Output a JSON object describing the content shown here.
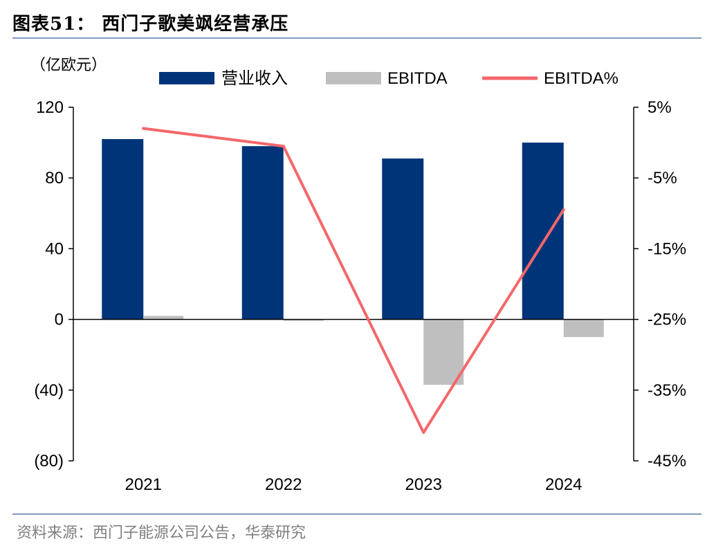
{
  "header": {
    "title": "图表51：  西门子歌美飒经营承压",
    "unit": "（亿欧元）",
    "source": "资料来源：西门子能源公司公告，华泰研究"
  },
  "colors": {
    "revenue": "#003478",
    "ebitda": "#bfbfbf",
    "ebitda_pct": "#f4676b",
    "rule": "#7f9bbf"
  },
  "chart_data": {
    "type": "bar",
    "categories": [
      "2021",
      "2022",
      "2023",
      "2024"
    ],
    "series": [
      {
        "name": "营业收入",
        "type": "bar",
        "axis": "left",
        "values": [
          102.0,
          98.0,
          91.0,
          100.0
        ]
      },
      {
        "name": "EBITDA",
        "type": "bar",
        "axis": "left",
        "values": [
          2.0,
          -0.5,
          -37.0,
          -10.0
        ]
      },
      {
        "name": "EBITDA%",
        "type": "line",
        "axis": "right",
        "values": [
          2.0,
          -0.5,
          -41.0,
          -9.5
        ]
      }
    ],
    "y_left": {
      "min": -80,
      "max": 120,
      "ticks": [
        120,
        80,
        40,
        0,
        -40,
        -80
      ],
      "tick_labels": [
        "120",
        "80",
        "40",
        "0",
        "(40)",
        "(80)"
      ]
    },
    "y_right": {
      "min": -45,
      "max": 5,
      "ticks": [
        5,
        -5,
        -15,
        -25,
        -35,
        -45
      ],
      "tick_labels": [
        "5%",
        "-5%",
        "-15%",
        "-25%",
        "-35%",
        "-45%"
      ]
    },
    "legend_position": "top",
    "grid": false
  }
}
